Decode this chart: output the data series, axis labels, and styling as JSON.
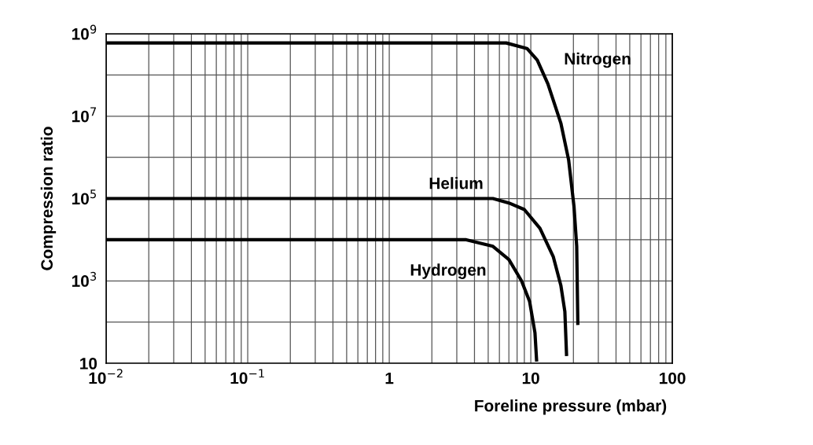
{
  "chart_data": {
    "type": "line",
    "xlabel": "Foreline pressure (mbar)",
    "ylabel": "Compression ratio",
    "log": "xy",
    "grid": true,
    "line_style": "solid",
    "marker": "none",
    "xlim": [
      0.01,
      100
    ],
    "ylim": [
      10,
      1000000000
    ],
    "xticks": [
      {
        "value": 0.01,
        "label": "10$^{−2}$"
      },
      {
        "value": 0.02,
        "label": null
      },
      {
        "value": 0.03,
        "label": null
      },
      {
        "value": 0.04,
        "label": null
      },
      {
        "value": 0.05,
        "label": null
      },
      {
        "value": 0.06,
        "label": null
      },
      {
        "value": 0.07,
        "label": null
      },
      {
        "value": 0.08,
        "label": null
      },
      {
        "value": 0.09,
        "label": null
      },
      {
        "value": 0.1,
        "label": "10$^{−1}$"
      },
      {
        "value": 0.2,
        "label": null
      },
      {
        "value": 0.3,
        "label": null
      },
      {
        "value": 0.4,
        "label": null
      },
      {
        "value": 0.5,
        "label": null
      },
      {
        "value": 0.6,
        "label": null
      },
      {
        "value": 0.7,
        "label": null
      },
      {
        "value": 0.8,
        "label": null
      },
      {
        "value": 0.9,
        "label": null
      },
      1,
      {
        "value": 2,
        "label": null
      },
      {
        "value": 3,
        "label": null
      },
      {
        "value": 4,
        "label": null
      },
      {
        "value": 5,
        "label": null
      },
      {
        "value": 6,
        "label": null
      },
      {
        "value": 7,
        "label": null
      },
      {
        "value": 8,
        "label": null
      },
      {
        "value": 9,
        "label": null
      },
      10,
      {
        "value": 20,
        "label": null
      },
      {
        "value": 30,
        "label": null
      },
      {
        "value": 40,
        "label": null
      },
      {
        "value": 50,
        "label": null
      },
      {
        "value": 60,
        "label": null
      },
      {
        "value": 70,
        "label": null
      },
      {
        "value": 80,
        "label": null
      },
      {
        "value": 90,
        "label": null
      },
      100
    ],
    "yticks": [
      10,
      {
        "value": 100,
        "label": null
      },
      {
        "value": 1000,
        "label": "10$^{3}$"
      },
      {
        "value": 10000,
        "label": null
      },
      {
        "value": 100000,
        "label": "10$^{5}$"
      },
      {
        "value": 1000000,
        "label": null
      },
      {
        "value": 10000000,
        "label": "10$^{7}$"
      },
      {
        "value": 100000000,
        "label": null
      },
      {
        "value": 1000000000,
        "label": "10$^{9}$"
      }
    ],
    "series": [
      {
        "name": "Nitrogen",
        "color": "#000000",
        "x": [
          0.01,
          6.7,
          9.4,
          11.1,
          13.2,
          16.3,
          18.5,
          20.2,
          21.1,
          21.5
        ],
        "values": [
          600000000,
          600000000,
          440000000,
          230000000,
          61000000,
          6800000,
          870000,
          63000,
          6900,
          85
        ]
      },
      {
        "name": "Helium",
        "color": "#000000",
        "x": [
          0.01,
          5.4,
          7.0,
          9.0,
          11.6,
          14.4,
          16.3,
          17.4,
          17.9
        ],
        "values": [
          100000,
          100000,
          78000,
          54000,
          19000,
          3900,
          780,
          180,
          15
        ]
      },
      {
        "name": "Hydrogen",
        "color": "#000000",
        "x": [
          0.01,
          3.5,
          5.4,
          7.0,
          8.6,
          9.8,
          10.7,
          11.0
        ],
        "values": [
          10000,
          10000,
          6900,
          3300,
          1000,
          320,
          55,
          11
        ]
      }
    ]
  }
}
